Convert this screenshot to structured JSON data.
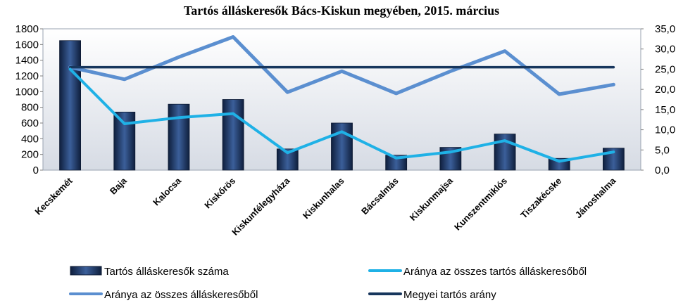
{
  "chart_data": {
    "type": "bar",
    "title": "Tartós álláskeresők Bács-Kiskun megyében, 2015. március",
    "categories": [
      "Kecskemét",
      "Baja",
      "Kalocsa",
      "Kiskőrös",
      "Kiskunfélegyháza",
      "Kiskunhalas",
      "Bácsalmás",
      "Kiskunmajsa",
      "Kunszentmiklós",
      "Tiszakécske",
      "Jánoshalma"
    ],
    "y_left": {
      "ylim": [
        0,
        1800
      ],
      "ticks": [
        "0",
        "200",
        "400",
        "600",
        "800",
        "1000",
        "1200",
        "1400",
        "1600",
        "1800"
      ]
    },
    "y_right": {
      "ylim": [
        0,
        35
      ],
      "ticks": [
        "0,0",
        "5,0",
        "10,0",
        "15,0",
        "20,0",
        "25,0",
        "30,0",
        "35,0"
      ]
    },
    "series": [
      {
        "name": "Tartós álláskeresők száma",
        "kind": "bar",
        "axis": "left",
        "color": "#1f3864",
        "values": [
          1650,
          740,
          840,
          900,
          270,
          600,
          190,
          290,
          460,
          150,
          280
        ]
      },
      {
        "name": "Aránya az összes tartós álláskeresőből",
        "kind": "line",
        "axis": "right",
        "color": "#1fb1e6",
        "values": [
          25.0,
          11.5,
          13.0,
          14.0,
          4.3,
          9.5,
          3.0,
          4.5,
          7.3,
          2.2,
          4.5
        ]
      },
      {
        "name": "Aránya az összes álláskeresőből",
        "kind": "line",
        "axis": "right",
        "color": "#5b8fd0",
        "values": [
          25.5,
          22.5,
          28.0,
          33.0,
          19.3,
          24.5,
          19.0,
          24.5,
          29.5,
          18.8,
          21.2
        ]
      },
      {
        "name": "Megyei tartós arány",
        "kind": "line",
        "axis": "right",
        "color": "#17365d",
        "values": [
          25.5,
          25.5,
          25.5,
          25.5,
          25.5,
          25.5,
          25.5,
          25.5,
          25.5,
          25.5,
          25.5
        ]
      }
    ],
    "grid": false,
    "legend_position": "bottom"
  }
}
